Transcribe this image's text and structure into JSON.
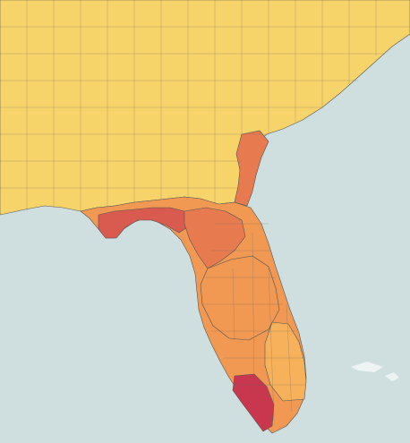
{
  "map": {
    "background": "#cfdfe0",
    "land_default": "#f7d070",
    "border": "#555555",
    "palette": {
      "low": "#f7d46a",
      "mid_low": "#f6b15a",
      "mid": "#f19952",
      "mid_high": "#e87a4f",
      "high": "#d95a4e",
      "very_high": "#c8374d"
    },
    "regions": [
      {
        "name": "region-southeast-us",
        "level": "low"
      },
      {
        "name": "region-florida-panhandle",
        "level": "high"
      },
      {
        "name": "region-gulf-coast",
        "level": "mid_high"
      },
      {
        "name": "region-atlantic-coast",
        "level": "mid_high"
      },
      {
        "name": "region-central-florida",
        "level": "mid"
      },
      {
        "name": "region-southwest-florida",
        "level": "very_high"
      },
      {
        "name": "region-southeast-florida",
        "level": "mid_low"
      }
    ]
  }
}
